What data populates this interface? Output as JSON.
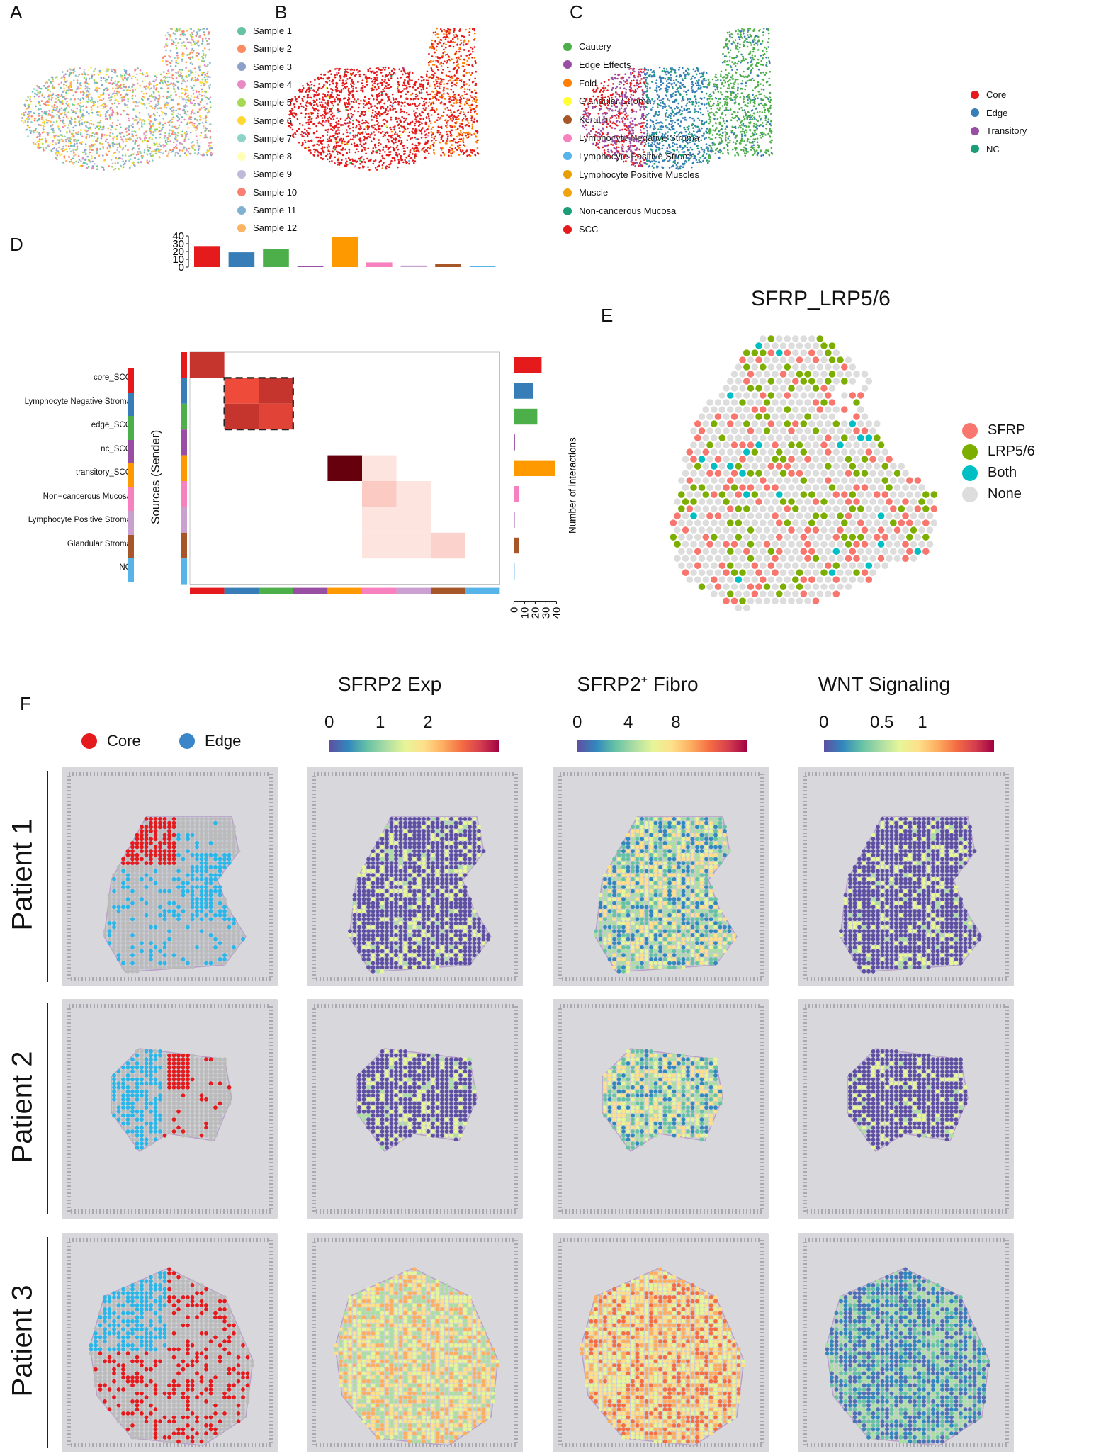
{
  "panels": {
    "a": {
      "letter": "A",
      "legend": [
        {
          "label": "Sample 1",
          "color": "#66c2a5"
        },
        {
          "label": "Sample 2",
          "color": "#fc8d62"
        },
        {
          "label": "Sample 3",
          "color": "#8da0cb"
        },
        {
          "label": "Sample 4",
          "color": "#e78ac3"
        },
        {
          "label": "Sample 5",
          "color": "#a6d854"
        },
        {
          "label": "Sample 6",
          "color": "#ffd92f"
        },
        {
          "label": "Sample 7",
          "color": "#8dd3c7"
        },
        {
          "label": "Sample 8",
          "color": "#ffffb3"
        },
        {
          "label": "Sample 9",
          "color": "#bebada"
        },
        {
          "label": "Sample 10",
          "color": "#fb8072"
        },
        {
          "label": "Sample 11",
          "color": "#80b1d3"
        },
        {
          "label": "Sample 12",
          "color": "#fdb462"
        }
      ]
    },
    "b": {
      "letter": "B",
      "legend": [
        {
          "label": "Cautery",
          "color": "#4daf4a"
        },
        {
          "label": "Edge Effects",
          "color": "#984ea3"
        },
        {
          "label": "Fold",
          "color": "#ff7f00"
        },
        {
          "label": "Glandular Stroma",
          "color": "#ffff33"
        },
        {
          "label": "Keratin",
          "color": "#a65628"
        },
        {
          "label": "Lymphocyte Negative Stroma",
          "color": "#f781bf"
        },
        {
          "label": "Lymphocyte Positive Stroma",
          "color": "#56b4e9"
        },
        {
          "label": "Lymphocyte Positive Muscles",
          "color": "#e69f00"
        },
        {
          "label": "Muscle",
          "color": "#f0a30a"
        },
        {
          "label": "Non-cancerous Mucosa",
          "color": "#1b9e77"
        },
        {
          "label": "SCC",
          "color": "#e41a1c"
        }
      ]
    },
    "c": {
      "letter": "C",
      "legend": [
        {
          "label": "Core",
          "color": "#e41a1c"
        },
        {
          "label": "Edge",
          "color": "#377eb8"
        },
        {
          "label": "Transitory",
          "color": "#984ea3"
        },
        {
          "label": "NC",
          "color": "#1b9e77"
        }
      ]
    },
    "d": {
      "letter": "D",
      "ylabel": "Sources (Sender)",
      "colorbar_label": "Number of interactions",
      "colorbar_ticks": [
        "40",
        "30",
        "20",
        "10",
        "0"
      ],
      "top_axis_ticks": [
        "40",
        "30",
        "20",
        "10",
        "0"
      ],
      "right_axis_ticks": [
        "0",
        "10",
        "20",
        "30",
        "40"
      ],
      "row_labels": [
        "core_SCC",
        "Lymphocyte Negative Stroma",
        "edge_SCC",
        "nc_SCC",
        "transitory_SCC",
        "Non−cancerous Mucosa",
        "Lymphocyte Positive Stroma",
        "Glandular Stroma",
        "NC"
      ],
      "group_colors": [
        "#e41a1c",
        "#377eb8",
        "#4daf4a",
        "#984ea3",
        "#ff9900",
        "#f781bf",
        "#c9a0d0",
        "#a65628",
        "#56b4e9"
      ]
    },
    "e": {
      "letter": "E",
      "title": "SFRP_LRP5/6",
      "legend": [
        {
          "label": "SFRP",
          "color": "#f8766d"
        },
        {
          "label": "LRP5/6",
          "color": "#7cae00"
        },
        {
          "label": "Both",
          "color": "#00bfc4"
        },
        {
          "label": "None",
          "color": "#dddddd"
        }
      ]
    },
    "f": {
      "letter": "F",
      "legend": [
        {
          "label": "Core",
          "color": "#e41a1c"
        },
        {
          "label": "Edge",
          "color": "#3a86c8"
        }
      ],
      "columns": [
        {
          "title": "SFRP2 Exp",
          "ticks": [
            "0",
            "1",
            "2"
          ],
          "title_sup": ""
        },
        {
          "title": "SFRP2",
          "title_sup": "+",
          "title_suffix": " Fibro",
          "ticks": [
            "0",
            "4",
            "8"
          ]
        },
        {
          "title": "WNT Signaling",
          "ticks": [
            "0",
            "0.5",
            "1"
          ],
          "title_sup": ""
        }
      ],
      "patients": [
        "Patient 1",
        "Patient 2",
        "Patient 3"
      ]
    }
  },
  "chart_data": [
    {
      "type": "bar",
      "name": "",
      "categories": [
        "core_SCC",
        "Lymphocyte Negative Stroma",
        "edge_SCC",
        "nc_SCC",
        "transitory_SCC",
        "Non−cancerous Mucosa",
        "Lymphocyte Positive Stroma",
        "Glandular Stroma",
        "NC"
      ],
      "values": [
        27,
        19,
        23,
        1,
        39,
        6,
        2,
        4,
        1
      ],
      "ylim": [
        0,
        40
      ]
    },
    {
      "type": "bar",
      "name": "",
      "orientation": "horizontal",
      "categories": [
        "core_SCC",
        "Lymphocyte Negative Stroma",
        "edge_SCC",
        "nc_SCC",
        "transitory_SCC",
        "Non−cancerous Mucosa",
        "Lymphocyte Positive Stroma",
        "Glandular Stroma",
        "NC"
      ],
      "values": [
        26,
        18,
        22,
        1,
        39,
        5,
        1,
        5,
        0.5
      ],
      "xlim": [
        0,
        40
      ]
    },
    {
      "type": "heatmap",
      "name": "",
      "rows": [
        "core_SCC",
        "Lymphocyte Negative Stroma",
        "edge_SCC",
        "nc_SCC",
        "transitory_SCC",
        "Non−cancerous Mucosa",
        "Lymphocyte Positive Stroma",
        "Glandular Stroma",
        "NC"
      ],
      "cols": [
        "core_SCC",
        "Lymphocyte Negative Stroma",
        "edge_SCC",
        "nc_SCC",
        "transitory_SCC",
        "Non−cancerous Mucosa",
        "Lymphocyte Positive Stroma",
        "Glandular Stroma",
        "NC"
      ],
      "zlim": [
        0,
        40
      ],
      "cells": [
        {
          "row": 0,
          "col": 0,
          "value": 26
        },
        {
          "row": 1,
          "col": 1,
          "value": 20
        },
        {
          "row": 1,
          "col": 2,
          "value": 26
        },
        {
          "row": 2,
          "col": 1,
          "value": 26
        },
        {
          "row": 2,
          "col": 2,
          "value": 22
        },
        {
          "row": 4,
          "col": 4,
          "value": 40
        },
        {
          "row": 4,
          "col": 5,
          "value": 2
        },
        {
          "row": 5,
          "col": 5,
          "value": 5
        },
        {
          "row": 5,
          "col": 6,
          "value": 2
        },
        {
          "row": 6,
          "col": 5,
          "value": 2
        },
        {
          "row": 6,
          "col": 6,
          "value": 2
        },
        {
          "row": 7,
          "col": 5,
          "value": 2
        },
        {
          "row": 7,
          "col": 6,
          "value": 2
        },
        {
          "row": 7,
          "col": 7,
          "value": 4
        }
      ]
    }
  ]
}
